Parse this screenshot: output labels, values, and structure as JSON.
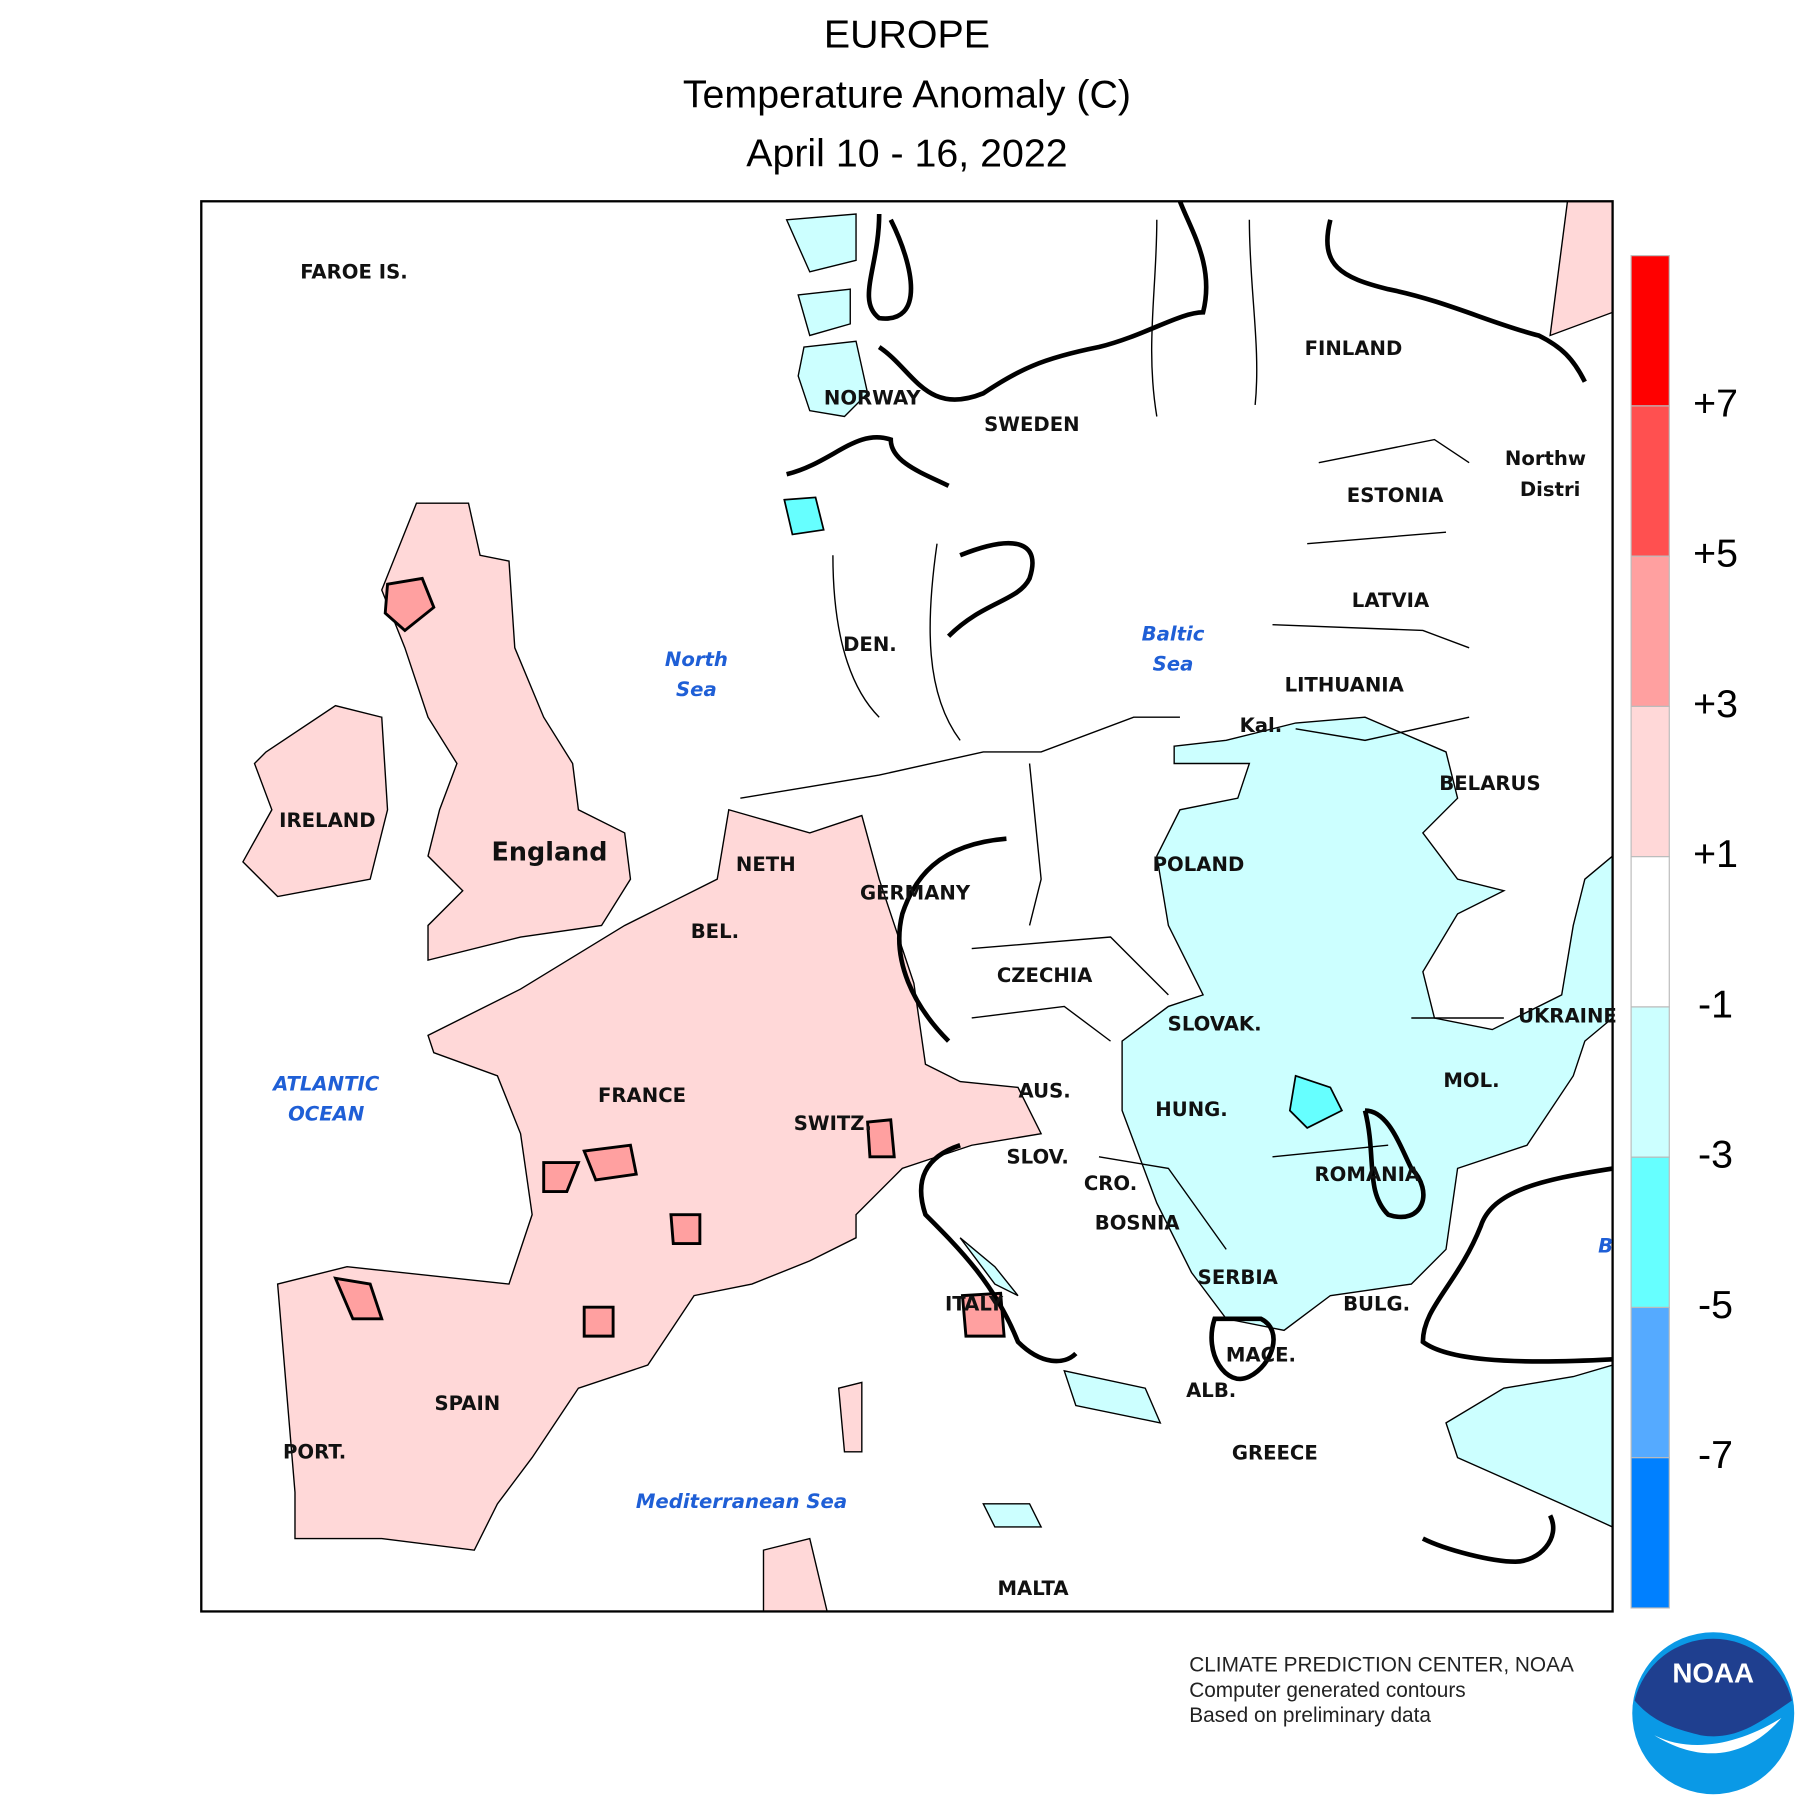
{
  "header": {
    "title": "EUROPE",
    "subtitle": "Temperature Anomaly (C)",
    "dates": "April 10 - 16, 2022"
  },
  "map": {
    "labels": [
      "FAROE IS.",
      "NORWAY",
      "SWEDEN",
      "FINLAND",
      "ESTONIA",
      "LATVIA",
      "LITHUANIA",
      "Kal.",
      "BELARUS",
      "POLAND",
      "UKRAINE",
      "SLOVAK.",
      "HUNG.",
      "MOL.",
      "ROMANIA",
      "SERBIA",
      "BOSNIA",
      "CRO.",
      "SLOV.",
      "AUS.",
      "CZECHIA",
      "GERMANY",
      "NETH",
      "BEL.",
      "DEN.",
      "IRELAND",
      "England",
      "FRANCE",
      "SWITZ.",
      "ITALY",
      "SPAIN",
      "PORT.",
      "GREECE",
      "ALB.",
      "MACE.",
      "BULG.",
      "MALTA",
      "Northw",
      "Distri",
      "B"
    ],
    "seas": [
      [
        "North",
        "Sea"
      ],
      [
        "Baltic",
        "Sea"
      ],
      [
        "ATLANTIC",
        "OCEAN"
      ],
      [
        "Mediterranean Sea"
      ]
    ]
  },
  "legend": {
    "colors": [
      "#ff0000",
      "#ff5050",
      "#ffa0a0",
      "#ffd8d8",
      "#ffffff",
      "#ccffff",
      "#66ffff",
      "#55aaff",
      "#0080ff"
    ],
    "labels": [
      "+7",
      "+5",
      "+3",
      "+1",
      "-1",
      "-3",
      "-5",
      "-7"
    ]
  },
  "credits": [
    "CLIMATE PREDICTION CENTER, NOAA",
    "Computer generated contours",
    "Based on preliminary data"
  ],
  "logo": "NOAA"
}
